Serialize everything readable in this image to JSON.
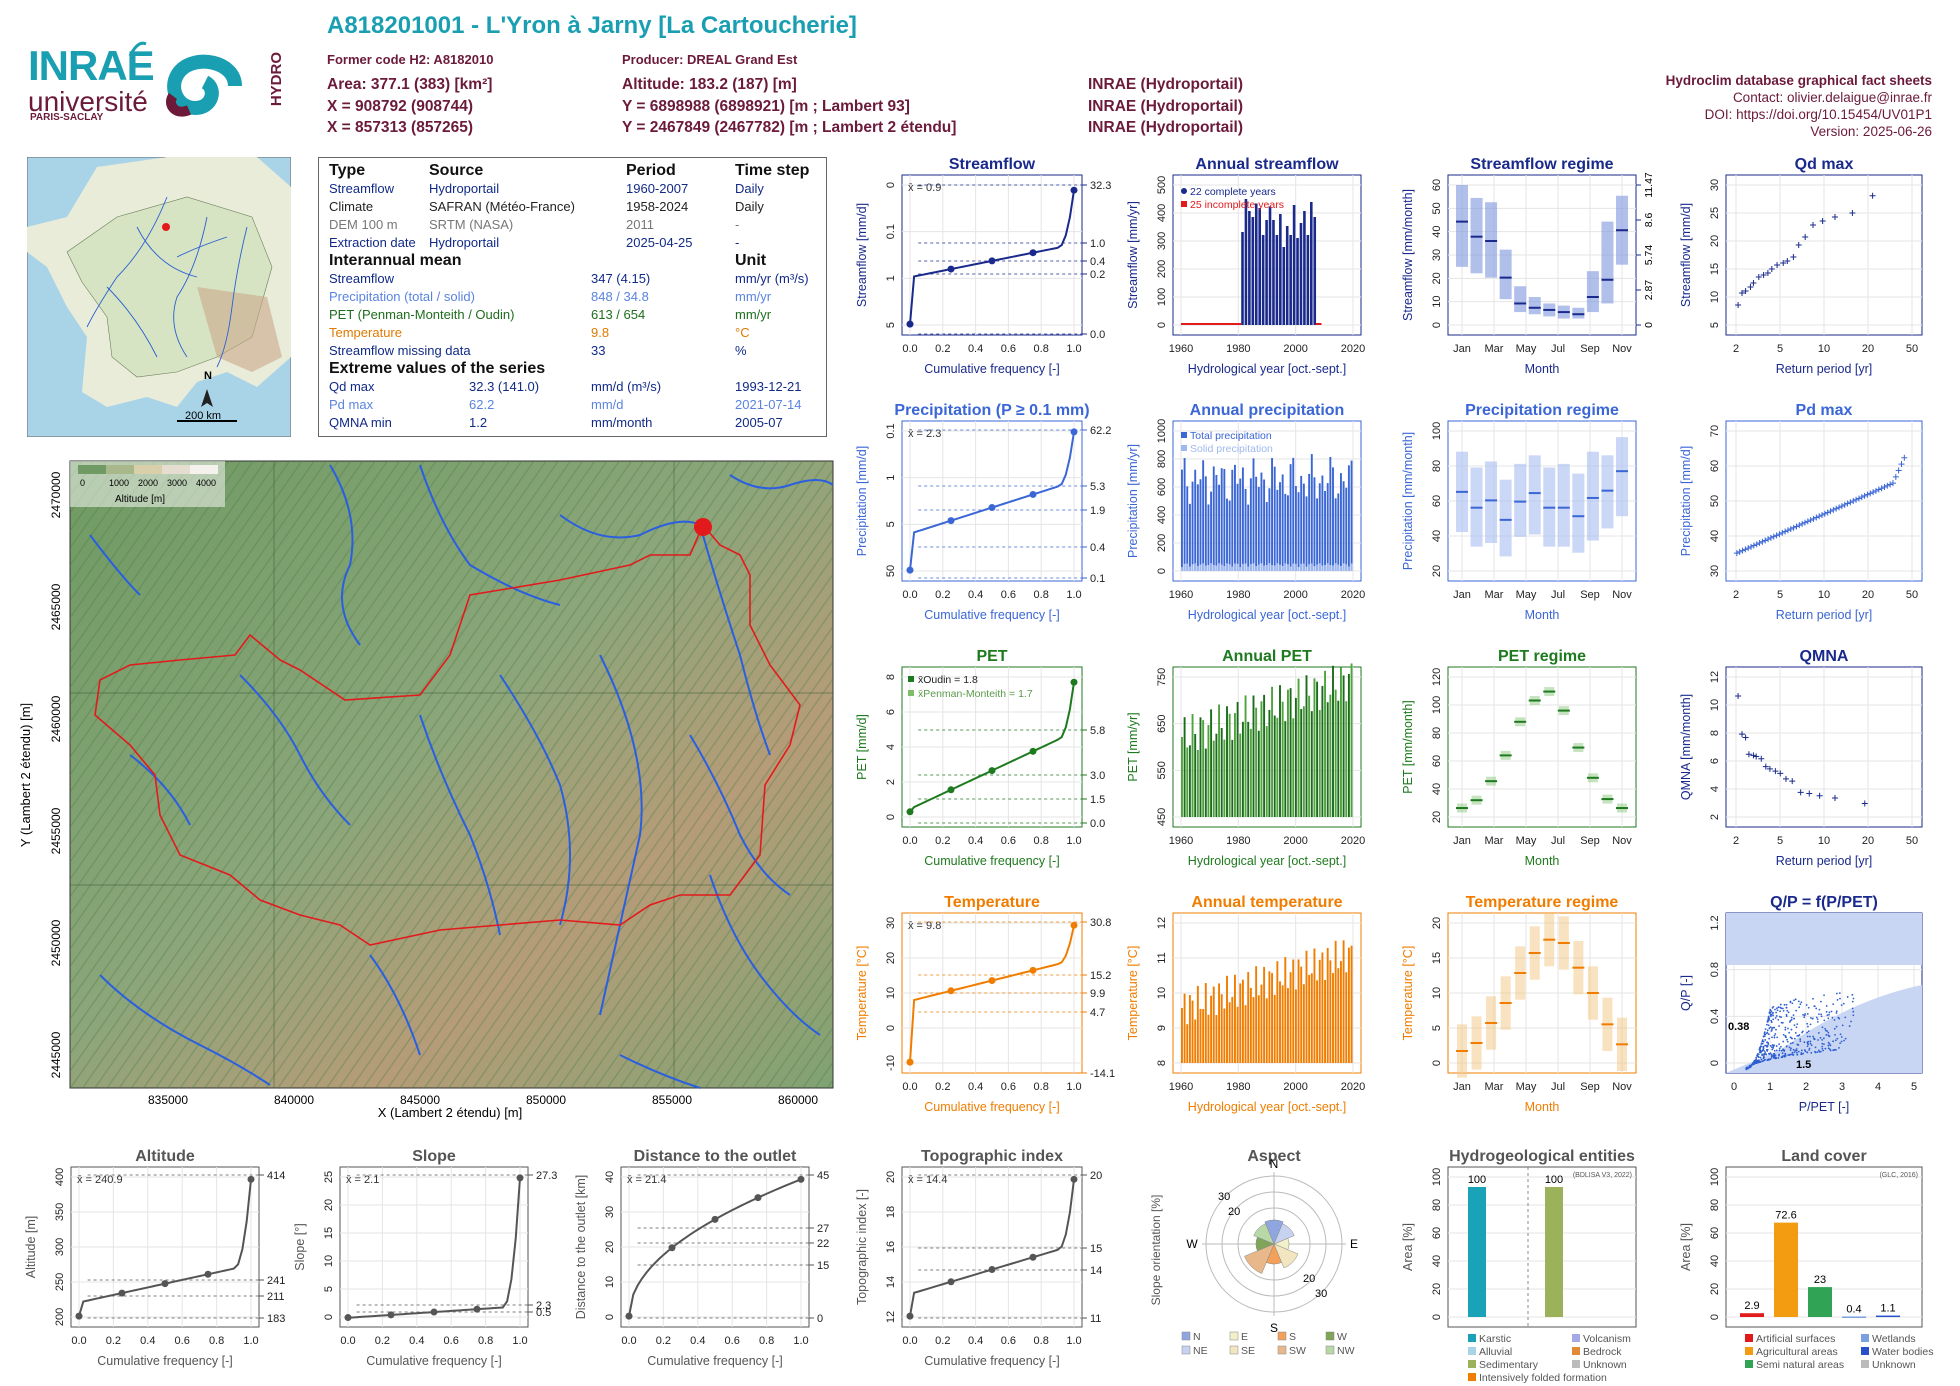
{
  "header": {
    "title": "A818201001 - L'Yron à Jarny [La Cartoucherie]",
    "former_code": "Former code H2: A8182010",
    "producer": "Producer: DREAL Grand Est",
    "area": "Area: 377.1 (383) [km²]",
    "altitude": "Altitude: 183.2 (187) [m]",
    "x1": "X = 908792 (908744)",
    "y1": "Y = 6898988 (6898921) [m ; Lambert 93]",
    "x2": "X = 857313 (857265)",
    "y2": "Y = 2467849 (2467782) [m ; Lambert 2 étendu]",
    "src1": "INRAE (Hydroportail)",
    "src2": "INRAE (Hydroportail)",
    "src3": "INRAE (Hydroportail)",
    "db_title": "Hydroclim database graphical fact sheets",
    "contact": "Contact: olivier.delaigue@inrae.fr",
    "doi": "DOI: https://doi.org/10.15454/UV01P1",
    "version": "Version: 2025-06-26"
  },
  "logos": {
    "inrae": "INRAE",
    "universite": "université",
    "paris_saclay": "PARIS-SACLAY",
    "hydro": "HYDRO"
  },
  "colors": {
    "teal": "#1a9fb2",
    "maroon": "#6b1a3a",
    "streamflow": "#1a2a8c",
    "precip": "#3a66d6",
    "pet": "#1e7a1e",
    "temp": "#f07d00"
  },
  "france_map": {
    "north": "N",
    "scale": "200 km"
  },
  "info": {
    "type_h": "Type",
    "source_h": "Source",
    "period_h": "Period",
    "timestep_h": "Time step",
    "rows": [
      {
        "type": "Streamflow",
        "source": "Hydroportail",
        "period": "1960-2007",
        "step": "Daily"
      },
      {
        "type": "Climate",
        "source": "SAFRAN (Météo-France)",
        "period": "1958-2024",
        "step": "Daily"
      },
      {
        "type": "DEM 100 m",
        "source": "SRTM (NASA)",
        "period": "2011",
        "step": "-"
      },
      {
        "type": "Extraction date",
        "source": "Hydroportail",
        "period": "2025-04-25",
        "step": "-"
      }
    ],
    "interannual_h": "Interannual mean",
    "unit_h": "Unit",
    "means": [
      {
        "name": "Streamflow",
        "value": "347 (4.15)",
        "unit": "mm/yr (m³/s)"
      },
      {
        "name": "Precipitation (total / solid)",
        "value": "848 / 34.8",
        "unit": "mm/yr"
      },
      {
        "name": "PET (Penman-Monteith / Oudin)",
        "value": "613 / 654",
        "unit": "mm/yr"
      },
      {
        "name": "Temperature",
        "value": "9.8",
        "unit": "°C"
      },
      {
        "name": "Streamflow missing data",
        "value": "33",
        "unit": "%"
      }
    ],
    "extreme_h": "Extreme values of the series",
    "extremes": [
      {
        "name": "Qd max",
        "value": "32.3 (141.0)",
        "unit": "mm/d (m³/s)",
        "date": "1993-12-21"
      },
      {
        "name": "Pd max",
        "value": "62.2",
        "unit": "mm/d",
        "date": "2021-07-14"
      },
      {
        "name": "QMNA min",
        "value": "1.2",
        "unit": "mm/month",
        "date": "2005-07"
      }
    ]
  },
  "basin_map": {
    "xlabel": "X (Lambert 2 étendu) [m]",
    "ylabel": "Y (Lambert 2 étendu) [m]",
    "xticks": [
      "835000",
      "840000",
      "845000",
      "850000",
      "855000",
      "860000"
    ],
    "yticks": [
      "2445000",
      "2450000",
      "2455000",
      "2460000",
      "2465000",
      "2470000"
    ],
    "legend_ticks": [
      "0",
      "1000",
      "2000",
      "3000",
      "4000"
    ],
    "legend_title": "Altitude [m]"
  },
  "chart_data": [
    {
      "id": "streamflow_cdf",
      "type": "line",
      "title": "Streamflow",
      "xlabel": "Cumulative frequency [-]",
      "ylabel": "Streamflow [mm/d]",
      "mean": "x̄ = 0.9",
      "x": [
        0,
        0.25,
        0.5,
        0.75,
        1.0
      ],
      "y": [
        0.0,
        0.2,
        0.4,
        1.0,
        32.3
      ],
      "right_labels": [
        "32.3",
        "1.0",
        "0.4",
        "0.2",
        "0.0"
      ],
      "yticks": [
        "5",
        "1",
        "0.1",
        "0"
      ],
      "xticks": [
        "0.0",
        "0.2",
        "0.4",
        "0.6",
        "0.8",
        "1.0"
      ]
    },
    {
      "id": "annual_streamflow",
      "type": "bar",
      "title": "Annual streamflow",
      "xlabel": "Hydrological year [oct.-sept.]",
      "ylabel": "Streamflow [mm/yr]",
      "legend": [
        "22 complete years",
        "25 incomplete years"
      ],
      "xticks": [
        "1960",
        "1980",
        "2000",
        "2020"
      ],
      "yticks": [
        "0",
        "100",
        "200",
        "300",
        "400",
        "500"
      ]
    },
    {
      "id": "streamflow_regime",
      "type": "bar",
      "title": "Streamflow regime",
      "xlabel": "Month",
      "ylabel": "Streamflow [mm/month]",
      "categories": [
        "Jan",
        "Feb",
        "Mar",
        "Apr",
        "May",
        "Jun",
        "Jul",
        "Aug",
        "Sep",
        "Oct",
        "Nov",
        "Dec"
      ],
      "values": [
        48,
        41,
        39,
        22,
        10,
        8,
        7,
        6,
        5,
        13,
        21,
        44
      ],
      "low": [
        27,
        24,
        22,
        12,
        6,
        5,
        4,
        3,
        3,
        6,
        10,
        28
      ],
      "high": [
        65,
        59,
        57,
        35,
        18,
        13,
        10,
        9,
        8,
        25,
        48,
        60
      ],
      "xticks": [
        "Jan",
        "Mar",
        "May",
        "Jul",
        "Sep",
        "Nov"
      ],
      "yticks": [
        "0",
        "10",
        "20",
        "30",
        "40",
        "50",
        "60"
      ],
      "right_ticks": [
        "0",
        "2.87",
        "5.74",
        "8.6",
        "11.47"
      ]
    },
    {
      "id": "qd_max",
      "type": "scatter",
      "title": "Qd max",
      "xlabel": "Return period [yr]",
      "ylabel": "Streamflow [mm/d]",
      "x": [
        1.05,
        1.15,
        1.25,
        1.4,
        1.5,
        1.7,
        1.9,
        2.1,
        2.3,
        2.6,
        3,
        3.3,
        3.8,
        4.3,
        5,
        6,
        7.5,
        10,
        15,
        24
      ],
      "y": [
        5,
        8,
        8.5,
        9.5,
        10.5,
        12,
        12.5,
        13,
        14,
        15,
        15.5,
        16,
        17,
        20,
        22,
        25,
        26,
        27,
        28,
        32.3
      ],
      "xticks": [
        "2",
        "5",
        "10",
        "20",
        "50"
      ],
      "yticks": [
        "5",
        "10",
        "15",
        "20",
        "25",
        "30"
      ]
    },
    {
      "id": "precip_cdf",
      "type": "line",
      "title": "Precipitation (P ≥ 0.1 mm)",
      "xlabel": "Cumulative frequency [-]",
      "ylabel": "Precipitation [mm/d]",
      "mean": "x̄ = 2.3",
      "right_labels": [
        "62.2",
        "5.3",
        "1.9",
        "0.4",
        "0.1"
      ],
      "yticks": [
        "50",
        "5",
        "1",
        "0.1"
      ],
      "xticks": [
        "0.0",
        "0.2",
        "0.4",
        "0.6",
        "0.8",
        "1.0"
      ]
    },
    {
      "id": "annual_precip",
      "type": "bar",
      "title": "Annual precipitation",
      "xlabel": "Hydrological year [oct.-sept.]",
      "ylabel": "Precipitation [mm/yr]",
      "legend": [
        "Total precipitation",
        "Solid precipitation"
      ],
      "xticks": [
        "1960",
        "1980",
        "2000",
        "2020"
      ],
      "yticks": [
        "0",
        "200",
        "400",
        "600",
        "800",
        "1000"
      ]
    },
    {
      "id": "precip_regime",
      "type": "bar",
      "title": "Precipitation regime",
      "xlabel": "Month",
      "ylabel": "Precipitation [mm/month]",
      "categories": [
        "Jan",
        "Feb",
        "Mar",
        "Apr",
        "May",
        "Jun",
        "Jul",
        "Aug",
        "Sep",
        "Oct",
        "Nov",
        "Dec"
      ],
      "values": [
        75,
        62,
        68,
        52,
        67,
        74,
        62,
        62,
        55,
        70,
        76,
        92
      ],
      "low": [
        42,
        30,
        33,
        22,
        38,
        40,
        30,
        30,
        25,
        35,
        45,
        55
      ],
      "high": [
        108,
        95,
        100,
        85,
        98,
        105,
        95,
        98,
        90,
        108,
        105,
        120
      ],
      "xticks": [
        "Jan",
        "Mar",
        "May",
        "Jul",
        "Sep",
        "Nov"
      ],
      "yticks": [
        "20",
        "40",
        "60",
        "80",
        "100"
      ]
    },
    {
      "id": "pd_max",
      "type": "scatter",
      "title": "Pd max",
      "xlabel": "Return period [yr]",
      "ylabel": "Precipitation [mm/d]",
      "xticks": [
        "2",
        "5",
        "10",
        "20",
        "50"
      ],
      "yticks": [
        "30",
        "40",
        "50",
        "60",
        "70"
      ]
    },
    {
      "id": "pet_cdf",
      "type": "line",
      "title": "PET",
      "xlabel": "Cumulative frequency [-]",
      "ylabel": "PET [mm/d]",
      "legend": [
        "x̄Oudin = 1.8",
        "x̄Penman-Monteith = 1.7"
      ],
      "right_labels": [
        "5.8",
        "3.0",
        "1.5",
        "0.0"
      ],
      "yticks": [
        "0",
        "2",
        "4",
        "6",
        "8"
      ],
      "xticks": [
        "0.0",
        "0.2",
        "0.4",
        "0.6",
        "0.8",
        "1.0"
      ]
    },
    {
      "id": "annual_pet",
      "type": "bar",
      "title": "Annual PET",
      "xlabel": "Hydrological year [oct.-sept.]",
      "ylabel": "PET [mm/yr]",
      "xticks": [
        "1960",
        "1980",
        "2000",
        "2020"
      ],
      "yticks": [
        "450",
        "550",
        "650",
        "750"
      ]
    },
    {
      "id": "pet_regime",
      "type": "bar",
      "title": "PET regime",
      "xlabel": "Month",
      "ylabel": "PET [mm/month]",
      "categories": [
        "Jan",
        "Feb",
        "Mar",
        "Apr",
        "May",
        "Jun",
        "Jul",
        "Aug",
        "Sep",
        "Oct",
        "Nov",
        "Dec"
      ],
      "values": [
        8,
        15,
        32,
        55,
        85,
        104,
        112,
        95,
        62,
        35,
        16,
        8
      ],
      "xticks": [
        "Jan",
        "Mar",
        "May",
        "Jul",
        "Sep",
        "Nov"
      ],
      "yticks": [
        "20",
        "40",
        "60",
        "80",
        "100",
        "120"
      ]
    },
    {
      "id": "qmna",
      "type": "scatter",
      "title": "QMNA",
      "xlabel": "Return period [yr]",
      "ylabel": "QMNA [mm/month]",
      "x": [
        1.05,
        1.15,
        1.25,
        1.35,
        1.5,
        1.6,
        1.8,
        2,
        2.2,
        2.5,
        2.8,
        3.2,
        3.7,
        4.5,
        5.5,
        7,
        10,
        20
      ],
      "y": [
        10.8,
        7.4,
        7.1,
        5.6,
        5.5,
        5.4,
        5.2,
        4.5,
        4.3,
        4.1,
        3.9,
        3.4,
        3.2,
        2.2,
        2.1,
        1.9,
        1.7,
        1.2
      ],
      "xticks": [
        "2",
        "5",
        "10",
        "20",
        "50"
      ],
      "yticks": [
        "2",
        "4",
        "6",
        "8",
        "10",
        "12"
      ]
    },
    {
      "id": "temp_cdf",
      "type": "line",
      "title": "Temperature",
      "xlabel": "Cumulative frequency [-]",
      "ylabel": "Temperature [°C]",
      "mean": "x̄ = 9.8",
      "right_labels": [
        "30.8",
        "15.2",
        "9.9",
        "4.7",
        "-14.1"
      ],
      "yticks": [
        "-10",
        "0",
        "10",
        "20",
        "30"
      ],
      "xticks": [
        "0.0",
        "0.2",
        "0.4",
        "0.6",
        "0.8",
        "1.0"
      ]
    },
    {
      "id": "annual_temp",
      "type": "bar",
      "title": "Annual temperature",
      "xlabel": "Hydrological year [oct.-sept.]",
      "ylabel": "Temperature [°C]",
      "xticks": [
        "1960",
        "1980",
        "2000",
        "2020"
      ],
      "yticks": [
        "8",
        "9",
        "10",
        "11",
        "12"
      ]
    },
    {
      "id": "temp_regime",
      "type": "bar",
      "title": "Temperature regime",
      "xlabel": "Month",
      "ylabel": "Temperature [°C]",
      "categories": [
        "Jan",
        "Feb",
        "Mar",
        "Apr",
        "May",
        "Jun",
        "Jul",
        "Aug",
        "Sep",
        "Oct",
        "Nov",
        "Dec"
      ],
      "values": [
        1.8,
        3,
        6,
        9,
        13.5,
        16.5,
        18.5,
        18,
        14.3,
        10.5,
        5.8,
        2.8
      ],
      "xticks": [
        "Jan",
        "Mar",
        "May",
        "Jul",
        "Sep",
        "Nov"
      ],
      "yticks": [
        "0",
        "5",
        "10",
        "15",
        "20"
      ]
    },
    {
      "id": "qp_ppet",
      "type": "scatter",
      "title": "Q/P = f(P/PET)",
      "xlabel": "P/PET [-]",
      "ylabel": "Q/P [-]",
      "annotations": [
        "0.38",
        "1.5"
      ],
      "xticks": [
        "0",
        "1",
        "2",
        "3",
        "4",
        "5"
      ],
      "yticks": [
        "0",
        "0.4",
        "0.8",
        "1.2"
      ]
    },
    {
      "id": "altitude_cdf",
      "type": "line",
      "title": "Altitude",
      "xlabel": "Cumulative frequency [-]",
      "ylabel": "Altitude [m]",
      "mean": "x̄ = 240.9",
      "right_labels": [
        "414",
        "241",
        "211",
        "183"
      ],
      "yticks": [
        "200",
        "250",
        "300",
        "350",
        "400"
      ],
      "xticks": [
        "0.0",
        "0.2",
        "0.4",
        "0.6",
        "0.8",
        "1.0"
      ]
    },
    {
      "id": "slope_cdf",
      "type": "line",
      "title": "Slope",
      "xlabel": "Cumulative frequency [-]",
      "ylabel": "Slope [°]",
      "mean": "x̄ = 2.1",
      "right_labels": [
        "27.3",
        "2.3",
        "0.5"
      ],
      "yticks": [
        "0",
        "5",
        "10",
        "15",
        "20",
        "25"
      ],
      "xticks": [
        "0.0",
        "0.2",
        "0.4",
        "0.6",
        "0.8",
        "1.0"
      ]
    },
    {
      "id": "distance_cdf",
      "type": "line",
      "title": "Distance to the outlet",
      "xlabel": "Cumulative frequency [-]",
      "ylabel": "Distance to the outlet [km]",
      "mean": "x̄ = 21.4",
      "right_labels": [
        "45",
        "27",
        "22",
        "15",
        "0"
      ],
      "yticks": [
        "0",
        "10",
        "20",
        "30",
        "40"
      ],
      "xticks": [
        "0.0",
        "0.2",
        "0.4",
        "0.6",
        "0.8",
        "1.0"
      ]
    },
    {
      "id": "topo_cdf",
      "type": "line",
      "title": "Topographic index",
      "xlabel": "Cumulative frequency [-]",
      "ylabel": "Topographic index [-]",
      "mean": "x̄ = 14.4",
      "right_labels": [
        "20",
        "15",
        "14",
        "11"
      ],
      "yticks": [
        "12",
        "14",
        "16",
        "18",
        "20"
      ],
      "xticks": [
        "0.0",
        "0.2",
        "0.4",
        "0.6",
        "0.8",
        "1.0"
      ]
    },
    {
      "id": "aspect",
      "type": "pie",
      "title": "Aspect",
      "ylabel": "Slope orientation [%]",
      "directions": [
        "N",
        "E",
        "S",
        "W"
      ],
      "rings": [
        "20",
        "30"
      ],
      "legend": [
        "N",
        "E",
        "S",
        "W",
        "NE",
        "SE",
        "SW",
        "NW"
      ]
    },
    {
      "id": "hydrogeology",
      "type": "bar",
      "title": "Hydrogeological entities",
      "ylabel": "Area [%]",
      "note": "(BDLISA V3, 2022)",
      "values": [
        100,
        100
      ],
      "yticks": [
        "0",
        "20",
        "40",
        "60",
        "80",
        "100"
      ],
      "legend": [
        "Karstic",
        "Volcanism",
        "Alluvial",
        "Bedrock",
        "Sedimentary",
        "Unknown",
        "Intensively folded formation"
      ]
    },
    {
      "id": "land_cover",
      "type": "bar",
      "title": "Land cover",
      "ylabel": "Area [%]",
      "note": "(GLC, 2016)",
      "values": [
        2.9,
        72.6,
        23,
        0.4,
        1.1
      ],
      "labels": [
        "2.9",
        "72.6",
        "23",
        "0.4",
        "1.1"
      ],
      "yticks": [
        "0",
        "20",
        "40",
        "60",
        "80",
        "100"
      ],
      "legend": [
        "Artificial surfaces",
        "Wetlands",
        "Agricultural areas",
        "Water bodies",
        "Semi natural areas",
        "Unknown"
      ]
    }
  ]
}
